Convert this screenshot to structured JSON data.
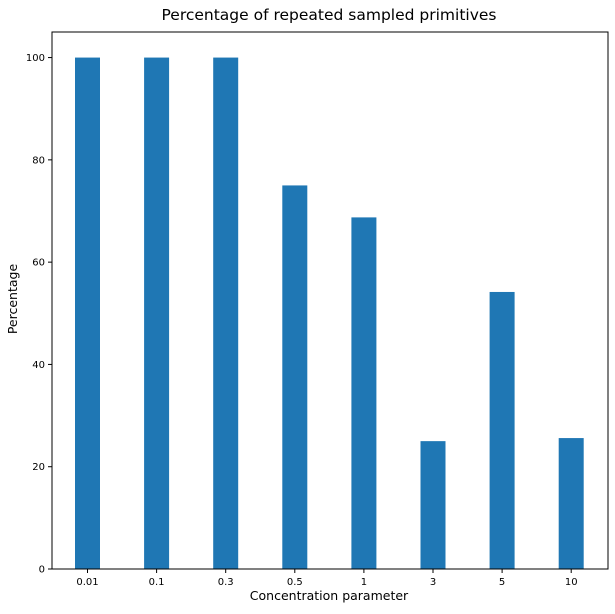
{
  "chart_data": {
    "type": "bar",
    "title": "Percentage of repeated sampled primitives",
    "xlabel": "Concentration parameter",
    "ylabel": "Percentage",
    "categories": [
      "0.01",
      "0.1",
      "0.3",
      "0.5",
      "1",
      "3",
      "5",
      "10"
    ],
    "values": [
      100,
      100,
      100,
      75,
      68.75,
      25,
      54.17,
      25.6
    ],
    "ylim": [
      0,
      105
    ],
    "yticks": [
      "0",
      "20",
      "40",
      "60",
      "80",
      "100"
    ],
    "grid": false,
    "legend": "none",
    "bar_color": "#1f77b4"
  }
}
